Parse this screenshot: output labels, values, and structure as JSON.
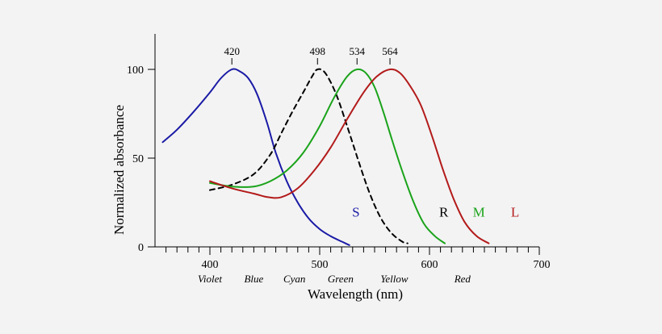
{
  "chart_data": {
    "type": "line",
    "title": "",
    "xlabel": "Wavelength (nm)",
    "ylabel": "Normalized absorbance",
    "xlim": [
      350,
      700
    ],
    "ylim": [
      0,
      100
    ],
    "grid": false,
    "x_ticks": [
      400,
      500,
      600,
      700
    ],
    "y_ticks": [
      0,
      50,
      100
    ],
    "color_labels": [
      {
        "text": "Violet",
        "x": 400
      },
      {
        "text": "Blue",
        "x": 440
      },
      {
        "text": "Cyan",
        "x": 477
      },
      {
        "text": "Green",
        "x": 519
      },
      {
        "text": "Yellow",
        "x": 568
      },
      {
        "text": "Red",
        "x": 630
      }
    ],
    "peak_labels": [
      {
        "text": "420",
        "x": 420
      },
      {
        "text": "498",
        "x": 498
      },
      {
        "text": "534",
        "x": 534
      },
      {
        "text": "564",
        "x": 564
      }
    ],
    "series": [
      {
        "name": "S",
        "color": "#1a1aa6",
        "dashed": false,
        "label_x": 533,
        "label_y": 17,
        "points": [
          [
            357,
            59
          ],
          [
            370,
            66
          ],
          [
            385,
            76
          ],
          [
            400,
            87
          ],
          [
            410,
            95
          ],
          [
            420,
            100
          ],
          [
            427,
            99
          ],
          [
            435,
            95
          ],
          [
            443,
            86
          ],
          [
            452,
            70
          ],
          [
            460,
            53
          ],
          [
            470,
            37
          ],
          [
            480,
            25
          ],
          [
            490,
            16
          ],
          [
            500,
            10
          ],
          [
            510,
            6
          ],
          [
            520,
            3
          ],
          [
            527,
            1
          ]
        ]
      },
      {
        "name": "R",
        "color": "#000000",
        "dashed": true,
        "label_x": 613,
        "label_y": 17,
        "points": [
          [
            400,
            32
          ],
          [
            420,
            35
          ],
          [
            440,
            41
          ],
          [
            455,
            52
          ],
          [
            465,
            64
          ],
          [
            475,
            76
          ],
          [
            485,
            87
          ],
          [
            493,
            96
          ],
          [
            498,
            100
          ],
          [
            505,
            98
          ],
          [
            515,
            86
          ],
          [
            525,
            68
          ],
          [
            535,
            49
          ],
          [
            545,
            31
          ],
          [
            555,
            17
          ],
          [
            565,
            8
          ],
          [
            575,
            3
          ],
          [
            580,
            2
          ]
        ]
      },
      {
        "name": "M",
        "color": "#1aa31a",
        "dashed": false,
        "label_x": 645,
        "label_y": 17,
        "points": [
          [
            400,
            36
          ],
          [
            420,
            34
          ],
          [
            440,
            34
          ],
          [
            455,
            37
          ],
          [
            470,
            43
          ],
          [
            485,
            53
          ],
          [
            500,
            68
          ],
          [
            513,
            84
          ],
          [
            525,
            96
          ],
          [
            534,
            100
          ],
          [
            542,
            98
          ],
          [
            550,
            90
          ],
          [
            558,
            76
          ],
          [
            566,
            60
          ],
          [
            575,
            43
          ],
          [
            585,
            26
          ],
          [
            595,
            13
          ],
          [
            605,
            6
          ],
          [
            614,
            2
          ]
        ]
      },
      {
        "name": "L",
        "color": "#b31a1a",
        "dashed": false,
        "label_x": 678,
        "label_y": 17,
        "points": [
          [
            400,
            37
          ],
          [
            420,
            33
          ],
          [
            440,
            30
          ],
          [
            453,
            28
          ],
          [
            465,
            28
          ],
          [
            480,
            33
          ],
          [
            495,
            43
          ],
          [
            510,
            56
          ],
          [
            525,
            72
          ],
          [
            540,
            87
          ],
          [
            552,
            96
          ],
          [
            564,
            100
          ],
          [
            573,
            98
          ],
          [
            582,
            91
          ],
          [
            592,
            80
          ],
          [
            602,
            63
          ],
          [
            612,
            44
          ],
          [
            622,
            27
          ],
          [
            632,
            14
          ],
          [
            643,
            6
          ],
          [
            654,
            2
          ]
        ]
      }
    ]
  }
}
